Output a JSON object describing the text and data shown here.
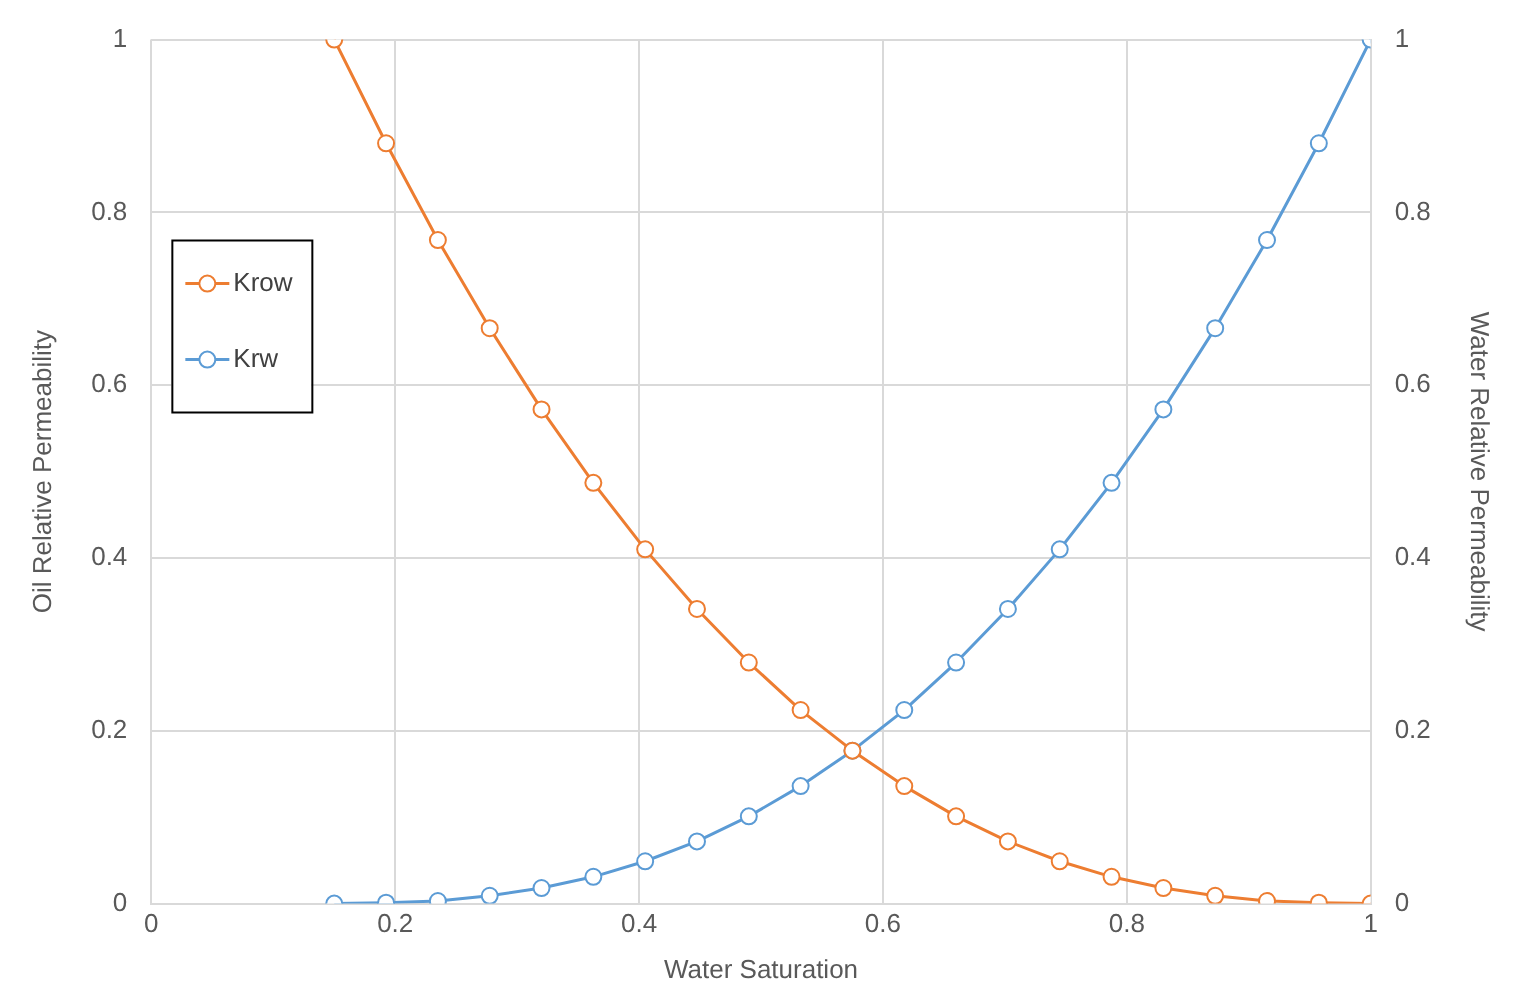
{
  "chart_data": {
    "type": "line",
    "xlabel": "Water Saturation",
    "ylabel": "Oil Relative Permeability",
    "y2label": "Water Relative Permeability",
    "x": [
      0.15,
      0.1925,
      0.235,
      0.2775,
      0.32,
      0.3625,
      0.405,
      0.4475,
      0.49,
      0.5325,
      0.575,
      0.6175,
      0.66,
      0.7025,
      0.745,
      0.7875,
      0.83,
      0.8725,
      0.915,
      0.9575,
      1
    ],
    "series": [
      {
        "name": "Krow",
        "color": "#ed7d31",
        "values": [
          1,
          0.88,
          0.768,
          0.666,
          0.572,
          0.487,
          0.41,
          0.341,
          0.279,
          0.224,
          0.177,
          0.136,
          0.101,
          0.072,
          0.049,
          0.031,
          0.018,
          0.009,
          0.003,
          0.001,
          0
        ]
      },
      {
        "name": "Krw",
        "color": "#5b9bd5",
        "axis": "y2",
        "values": [
          0,
          0.001,
          0.003,
          0.009,
          0.018,
          0.031,
          0.049,
          0.072,
          0.101,
          0.136,
          0.177,
          0.224,
          0.279,
          0.341,
          0.41,
          0.487,
          0.572,
          0.666,
          0.768,
          0.88,
          1
        ]
      }
    ],
    "xlim": [
      0,
      1
    ],
    "xticks": [
      0,
      0.2,
      0.4,
      0.6,
      0.8,
      1
    ],
    "ylim": [
      0,
      1
    ],
    "yticks": [
      0,
      0.2,
      0.4,
      0.6,
      0.8,
      1
    ],
    "y2lim": [
      0,
      1
    ],
    "y2ticks": [
      0,
      0.2,
      0.4,
      0.6,
      0.8,
      1
    ],
    "grid": true,
    "legend": "top left",
    "marker": "circle",
    "line_style": "solid"
  }
}
